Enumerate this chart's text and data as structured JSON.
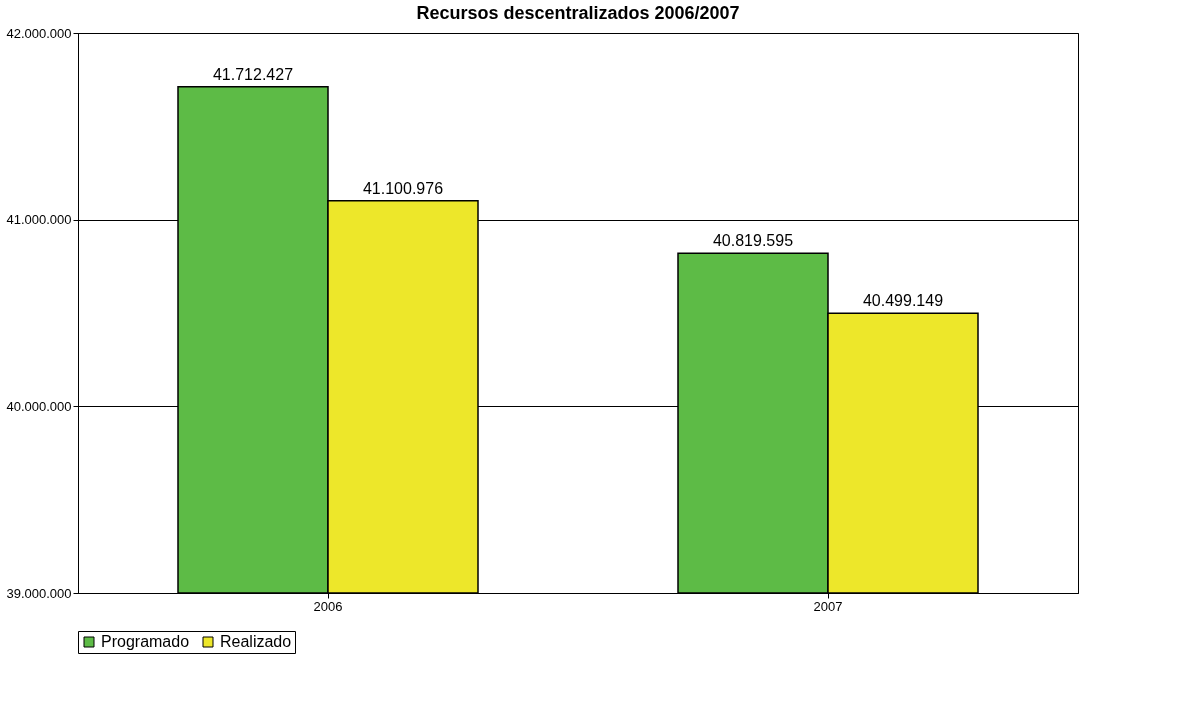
{
  "chart_data": {
    "type": "bar",
    "title": "Recursos descentralizados 2006/2007",
    "categories": [
      "2006",
      "2007"
    ],
    "series": [
      {
        "name": "Programado",
        "color": "#5dbb46",
        "values": [
          41712427,
          40819595
        ],
        "value_labels": [
          "41.712.427",
          "40.819.595"
        ]
      },
      {
        "name": "Realizado",
        "color": "#ede72a",
        "values": [
          41100976,
          40499149
        ],
        "value_labels": [
          "41.100.976",
          "40.499.149"
        ]
      }
    ],
    "ylim": [
      39000000,
      42000000
    ],
    "yticks": [
      {
        "value": 39000000,
        "label": "39.000.000"
      },
      {
        "value": 40000000,
        "label": "40.000.000"
      },
      {
        "value": 41000000,
        "label": "41.000.000"
      },
      {
        "value": 42000000,
        "label": "42.000.000"
      }
    ],
    "grid": "y",
    "legend": "bottom"
  }
}
